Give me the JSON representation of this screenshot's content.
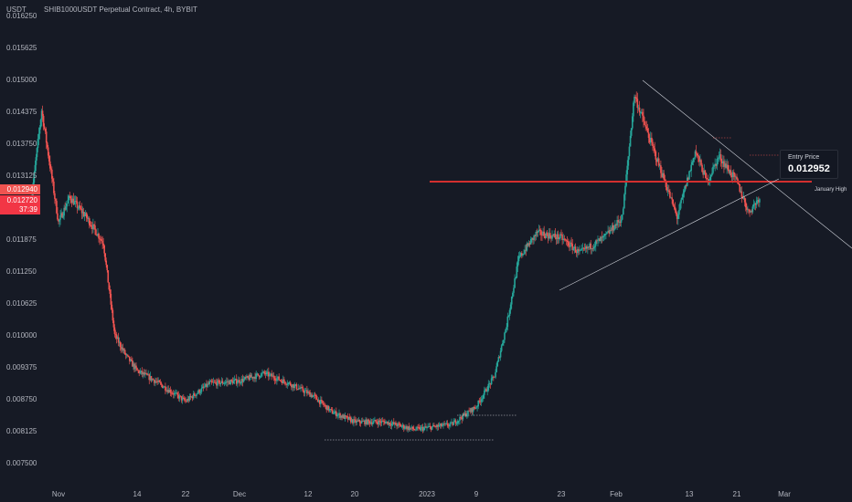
{
  "header": {
    "currency": "USDT",
    "title": "SHIB1000USDT Perpetual Contract, 4h, BYBIT"
  },
  "price_badges": {
    "top": "0.012940",
    "bottom_price": "0.012720",
    "bottom_countdown": "37:39"
  },
  "annotations": {
    "entry_title": "Entry Price",
    "entry_value": "0.012952",
    "january_high": "January High"
  },
  "colors": {
    "background": "#161a25",
    "up": "#26a69a",
    "down": "#ef5350",
    "horizontal_line": "#d32f2f",
    "badge_top": "#ef5350",
    "badge_bottom": "#f23645"
  },
  "chart_data": {
    "type": "candlestick",
    "title": "SHIB1000USDT Perpetual Contract, 4h, BYBIT",
    "ylim": [
      0.0072,
      0.0165
    ],
    "yticks": [
      "0.016250",
      "0.015625",
      "0.015000",
      "0.014375",
      "0.013750",
      "0.013125",
      "0.011875",
      "0.011250",
      "0.010625",
      "0.010000",
      "0.009375",
      "0.008750",
      "0.008125",
      "0.007500"
    ],
    "xticks": [
      "Nov",
      "14",
      "22",
      "Dec",
      "12",
      "20",
      "2023",
      "9",
      "23",
      "Feb",
      "13",
      "21",
      "Mar"
    ],
    "price_path": [
      {
        "date": "2022-10-26",
        "price": 0.0125
      },
      {
        "date": "2022-10-28",
        "price": 0.0144
      },
      {
        "date": "2022-10-31",
        "price": 0.0122
      },
      {
        "date": "2022-11-02",
        "price": 0.0127
      },
      {
        "date": "2022-11-05",
        "price": 0.0123
      },
      {
        "date": "2022-11-08",
        "price": 0.0118
      },
      {
        "date": "2022-11-10",
        "price": 0.01
      },
      {
        "date": "2022-11-12",
        "price": 0.0096
      },
      {
        "date": "2022-11-14",
        "price": 0.0093
      },
      {
        "date": "2022-11-17",
        "price": 0.0091
      },
      {
        "date": "2022-11-22",
        "price": 0.0087
      },
      {
        "date": "2022-11-26",
        "price": 0.00905
      },
      {
        "date": "2022-12-01",
        "price": 0.0091
      },
      {
        "date": "2022-12-05",
        "price": 0.00925
      },
      {
        "date": "2022-12-09",
        "price": 0.00905
      },
      {
        "date": "2022-12-13",
        "price": 0.0088
      },
      {
        "date": "2022-12-16",
        "price": 0.0085
      },
      {
        "date": "2022-12-20",
        "price": 0.0083
      },
      {
        "date": "2022-12-25",
        "price": 0.0083
      },
      {
        "date": "2022-12-30",
        "price": 0.00815
      },
      {
        "date": "2023-01-05",
        "price": 0.00825
      },
      {
        "date": "2023-01-09",
        "price": 0.0086
      },
      {
        "date": "2023-01-12",
        "price": 0.0092
      },
      {
        "date": "2023-01-14",
        "price": 0.0102
      },
      {
        "date": "2023-01-16",
        "price": 0.0115
      },
      {
        "date": "2023-01-19",
        "price": 0.012
      },
      {
        "date": "2023-01-23",
        "price": 0.0119
      },
      {
        "date": "2023-01-26",
        "price": 0.0116
      },
      {
        "date": "2023-01-30",
        "price": 0.0119
      },
      {
        "date": "2023-02-02",
        "price": 0.0123
      },
      {
        "date": "2023-02-04",
        "price": 0.0147
      },
      {
        "date": "2023-02-06",
        "price": 0.014
      },
      {
        "date": "2023-02-09",
        "price": 0.013
      },
      {
        "date": "2023-02-11",
        "price": 0.0123
      },
      {
        "date": "2023-02-14",
        "price": 0.0136
      },
      {
        "date": "2023-02-16",
        "price": 0.013
      },
      {
        "date": "2023-02-18",
        "price": 0.0135
      },
      {
        "date": "2023-02-21",
        "price": 0.013
      },
      {
        "date": "2023-02-23",
        "price": 0.0124
      },
      {
        "date": "2023-02-25",
        "price": 0.01272
      }
    ],
    "horizontal_level": 0.013,
    "grid": false
  }
}
